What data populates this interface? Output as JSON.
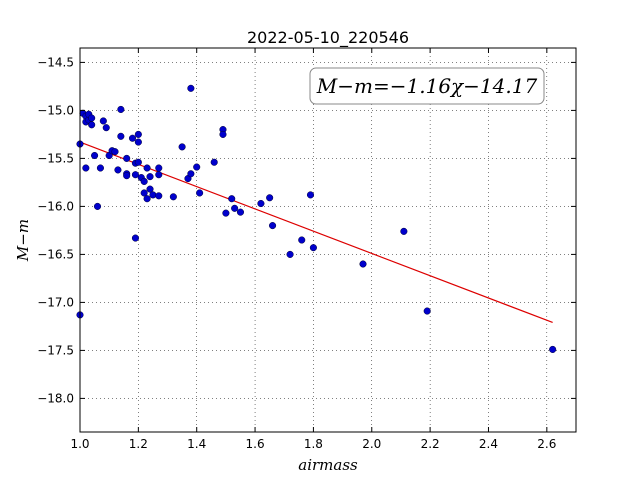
{
  "chart_data": {
    "type": "scatter",
    "title": "2022-05-10_220546",
    "xlabel": "airmass",
    "ylabel": "M−m",
    "xlim": [
      1.0,
      2.7
    ],
    "ylim": [
      -18.35,
      -14.35
    ],
    "y_inverted": true,
    "grid": true,
    "x_ticks": [
      1.0,
      1.2,
      1.4,
      1.6,
      1.8,
      2.0,
      2.2,
      2.4,
      2.6
    ],
    "x_tick_labels": [
      "1.0",
      "1.2",
      "1.4",
      "1.6",
      "1.8",
      "2.0",
      "2.2",
      "2.4",
      "2.6"
    ],
    "y_ticks": [
      -14.5,
      -15.0,
      -15.5,
      -16.0,
      -16.5,
      -17.0,
      -17.5,
      -18.0
    ],
    "y_tick_labels": [
      "−14.5",
      "−15.0",
      "−15.5",
      "−16.0",
      "−16.5",
      "−17.0",
      "−17.5",
      "−18.0"
    ],
    "annotation": "M−m=−1.16χ−14.17",
    "point_color": "#0000cc",
    "line_color": "#dd0000",
    "fit": {
      "slope": -1.16,
      "intercept": -14.17,
      "x_range": [
        1.0,
        2.62
      ]
    },
    "points": [
      {
        "x": 1.0,
        "y": -15.35
      },
      {
        "x": 1.0,
        "y": -17.13
      },
      {
        "x": 1.01,
        "y": -15.03
      },
      {
        "x": 1.02,
        "y": -15.06
      },
      {
        "x": 1.02,
        "y": -15.12
      },
      {
        "x": 1.03,
        "y": -15.1
      },
      {
        "x": 1.03,
        "y": -15.04
      },
      {
        "x": 1.04,
        "y": -15.08
      },
      {
        "x": 1.04,
        "y": -15.15
      },
      {
        "x": 1.02,
        "y": -15.6
      },
      {
        "x": 1.05,
        "y": -15.47
      },
      {
        "x": 1.06,
        "y": -16.0
      },
      {
        "x": 1.07,
        "y": -15.6
      },
      {
        "x": 1.08,
        "y": -15.11
      },
      {
        "x": 1.09,
        "y": -15.18
      },
      {
        "x": 1.1,
        "y": -15.47
      },
      {
        "x": 1.11,
        "y": -15.42
      },
      {
        "x": 1.12,
        "y": -15.43
      },
      {
        "x": 1.13,
        "y": -15.62
      },
      {
        "x": 1.14,
        "y": -14.99
      },
      {
        "x": 1.14,
        "y": -15.27
      },
      {
        "x": 1.16,
        "y": -15.5
      },
      {
        "x": 1.16,
        "y": -15.66
      },
      {
        "x": 1.16,
        "y": -15.68
      },
      {
        "x": 1.18,
        "y": -15.29
      },
      {
        "x": 1.19,
        "y": -15.55
      },
      {
        "x": 1.19,
        "y": -15.67
      },
      {
        "x": 1.19,
        "y": -16.33
      },
      {
        "x": 1.2,
        "y": -15.25
      },
      {
        "x": 1.2,
        "y": -15.33
      },
      {
        "x": 1.2,
        "y": -15.54
      },
      {
        "x": 1.21,
        "y": -15.7
      },
      {
        "x": 1.22,
        "y": -15.74
      },
      {
        "x": 1.22,
        "y": -15.86
      },
      {
        "x": 1.23,
        "y": -15.6
      },
      {
        "x": 1.23,
        "y": -15.92
      },
      {
        "x": 1.24,
        "y": -15.69
      },
      {
        "x": 1.24,
        "y": -15.82
      },
      {
        "x": 1.25,
        "y": -15.88
      },
      {
        "x": 1.27,
        "y": -15.6
      },
      {
        "x": 1.27,
        "y": -15.67
      },
      {
        "x": 1.27,
        "y": -15.89
      },
      {
        "x": 1.32,
        "y": -15.9
      },
      {
        "x": 1.35,
        "y": -15.38
      },
      {
        "x": 1.37,
        "y": -15.71
      },
      {
        "x": 1.38,
        "y": -15.66
      },
      {
        "x": 1.38,
        "y": -14.77
      },
      {
        "x": 1.4,
        "y": -15.59
      },
      {
        "x": 1.41,
        "y": -15.86
      },
      {
        "x": 1.46,
        "y": -15.54
      },
      {
        "x": 1.49,
        "y": -15.2
      },
      {
        "x": 1.49,
        "y": -15.25
      },
      {
        "x": 1.5,
        "y": -16.07
      },
      {
        "x": 1.52,
        "y": -15.92
      },
      {
        "x": 1.53,
        "y": -16.02
      },
      {
        "x": 1.55,
        "y": -16.06
      },
      {
        "x": 1.62,
        "y": -15.97
      },
      {
        "x": 1.65,
        "y": -15.91
      },
      {
        "x": 1.66,
        "y": -16.2
      },
      {
        "x": 1.72,
        "y": -16.5
      },
      {
        "x": 1.76,
        "y": -16.35
      },
      {
        "x": 1.79,
        "y": -15.88
      },
      {
        "x": 1.8,
        "y": -16.43
      },
      {
        "x": 1.97,
        "y": -16.6
      },
      {
        "x": 2.11,
        "y": -16.26
      },
      {
        "x": 2.19,
        "y": -17.09
      },
      {
        "x": 2.62,
        "y": -17.49
      }
    ]
  }
}
